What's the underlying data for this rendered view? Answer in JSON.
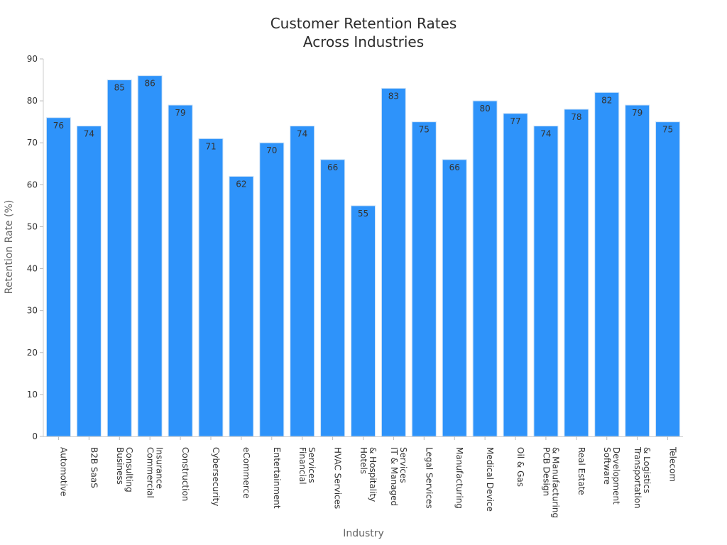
{
  "chart_data": {
    "type": "bar",
    "title": [
      "Customer Retention Rates",
      "Across Industries"
    ],
    "xlabel": "Industry",
    "ylabel": "Retention Rate (%)",
    "ylim": [
      0,
      90
    ],
    "yticks": [
      0,
      10,
      20,
      30,
      40,
      50,
      60,
      70,
      80,
      90
    ],
    "grid": false,
    "bar_color": "#2e93fa",
    "bar_edge_color": "#cfe3f7",
    "categories": [
      [
        "Automotive"
      ],
      [
        "B2B SaaS"
      ],
      [
        "Business",
        "Consulting"
      ],
      [
        "Commercial",
        "Insurance"
      ],
      [
        "Construction"
      ],
      [
        "Cybersecurity"
      ],
      [
        "eCommerce"
      ],
      [
        "Entertainment"
      ],
      [
        "Financial",
        "Services"
      ],
      [
        "HVAC Services"
      ],
      [
        "Hotels",
        "& Hospitality"
      ],
      [
        "IT & Managed",
        "Services"
      ],
      [
        "Legal Services"
      ],
      [
        "Manufacturing"
      ],
      [
        "Medical Device"
      ],
      [
        "Oil & Gas"
      ],
      [
        "PCB Design",
        "& Manufacturing"
      ],
      [
        "Real Estate"
      ],
      [
        "Software",
        "Development"
      ],
      [
        "Transportation",
        "& Logistics"
      ],
      [
        "Telecom"
      ]
    ],
    "values": [
      76,
      74,
      85,
      86,
      79,
      71,
      62,
      70,
      74,
      66,
      55,
      83,
      75,
      66,
      80,
      77,
      74,
      78,
      82,
      79,
      75
    ]
  }
}
